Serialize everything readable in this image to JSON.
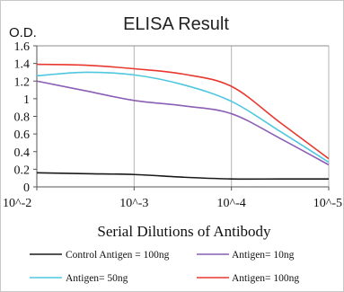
{
  "chart_data": {
    "type": "line",
    "title": "ELISA Result",
    "ylabel": "O.D.",
    "xlabel": "Serial Dilutions of Antibody",
    "x_ticks": [
      "10^-2",
      "10^-3",
      "10^-4",
      "10^-5"
    ],
    "y_ticks": [
      "0",
      "0.2",
      "0.4",
      "0.6",
      "0.8",
      "1",
      "1.2",
      "1.4",
      "1.6"
    ],
    "ylim": [
      0,
      1.6
    ],
    "xscale": "log",
    "grid": {
      "vertical": true,
      "horizontal": false
    },
    "legend_position": "bottom",
    "series": [
      {
        "name": "Control Antigen = 100ng",
        "color": "#1a1a1a",
        "points": [
          [
            0,
            0.16
          ],
          [
            0.5,
            0.15
          ],
          [
            1,
            0.14
          ],
          [
            1.5,
            0.11
          ],
          [
            2,
            0.09
          ],
          [
            2.5,
            0.09
          ],
          [
            3,
            0.09
          ]
        ]
      },
      {
        "name": "Antigen= 10ng",
        "color": "#8a5fb5",
        "points": [
          [
            0,
            1.2
          ],
          [
            0.5,
            1.09
          ],
          [
            1,
            0.98
          ],
          [
            1.5,
            0.92
          ],
          [
            2,
            0.83
          ],
          [
            2.5,
            0.55
          ],
          [
            3,
            0.25
          ]
        ]
      },
      {
        "name": "Antigen= 50ng",
        "color": "#4fc7e0",
        "points": [
          [
            0,
            1.26
          ],
          [
            0.5,
            1.3
          ],
          [
            1,
            1.27
          ],
          [
            1.5,
            1.16
          ],
          [
            2,
            0.97
          ],
          [
            2.5,
            0.63
          ],
          [
            3,
            0.28
          ]
        ]
      },
      {
        "name": "Antigen= 100ng",
        "color": "#e8382f",
        "points": [
          [
            0,
            1.39
          ],
          [
            0.5,
            1.38
          ],
          [
            1,
            1.34
          ],
          [
            1.5,
            1.28
          ],
          [
            2,
            1.14
          ],
          [
            2.5,
            0.73
          ],
          [
            3,
            0.32
          ]
        ]
      }
    ]
  }
}
